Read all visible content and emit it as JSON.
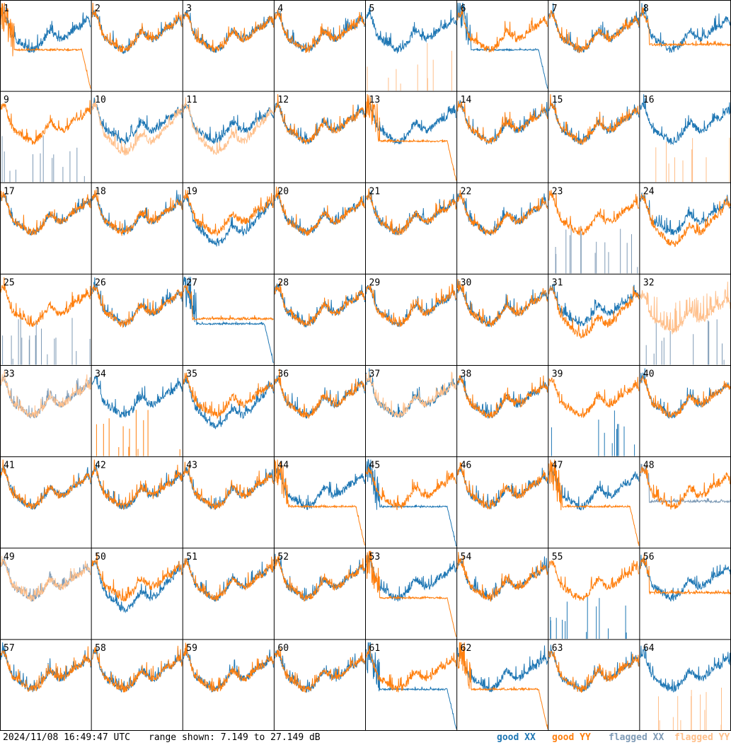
{
  "footer": {
    "timestamp": "2024/11/08 16:49:47 UTC",
    "range_text": "range shown: 7.149 to 27.149 dB",
    "legend": {
      "good_xx_label": "good XX",
      "good_yy_label": "good YY",
      "flagged_xx_label": "flagged XX",
      "flagged_yy_label": "flagged YY"
    }
  },
  "colors": {
    "good_xx": "#1f77b4",
    "good_yy": "#ff7f0e",
    "flagged_xx": "#7f9bb6",
    "flagged_yy": "#ffbf8a",
    "grid": "#000000"
  },
  "chart_data": {
    "type": "line",
    "grid": "8x8 small multiples, antenna spectra",
    "y_range_db": [
      7.149,
      27.149
    ],
    "panels": [
      {
        "id": "1",
        "xx": "good",
        "yy": "good",
        "xx_shape": "normal",
        "yy_shape": "dropout"
      },
      {
        "id": "2",
        "xx": "good",
        "yy": "good",
        "xx_shape": "normal",
        "yy_shape": "normal"
      },
      {
        "id": "3",
        "xx": "good",
        "yy": "good",
        "xx_shape": "normal",
        "yy_shape": "normal"
      },
      {
        "id": "4",
        "xx": "good",
        "yy": "good",
        "xx_shape": "normal",
        "yy_shape": "normal"
      },
      {
        "id": "5",
        "xx": "good",
        "yy": "flagged",
        "xx_shape": "normal",
        "yy_shape": "spikes"
      },
      {
        "id": "6",
        "xx": "good",
        "yy": "good",
        "xx_shape": "dropout",
        "yy_shape": "normal"
      },
      {
        "id": "7",
        "xx": "good",
        "yy": "good",
        "xx_shape": "normal",
        "yy_shape": "normal"
      },
      {
        "id": "8",
        "xx": "good",
        "yy": "good",
        "xx_shape": "normal",
        "yy_shape": "flat"
      },
      {
        "id": "9",
        "xx": "flagged",
        "yy": "good",
        "xx_shape": "spikes",
        "yy_shape": "normal"
      },
      {
        "id": "10",
        "xx": "good",
        "yy": "flagged",
        "xx_shape": "normal",
        "yy_shape": "low"
      },
      {
        "id": "11",
        "xx": "good",
        "yy": "flagged",
        "xx_shape": "normal",
        "yy_shape": "low"
      },
      {
        "id": "12",
        "xx": "good",
        "yy": "good",
        "xx_shape": "normal",
        "yy_shape": "normal"
      },
      {
        "id": "13",
        "xx": "good",
        "yy": "good",
        "xx_shape": "normal",
        "yy_shape": "dropout"
      },
      {
        "id": "14",
        "xx": "good",
        "yy": "good",
        "xx_shape": "normal",
        "yy_shape": "normal"
      },
      {
        "id": "15",
        "xx": "good",
        "yy": "good",
        "xx_shape": "normal",
        "yy_shape": "normal"
      },
      {
        "id": "16",
        "xx": "good",
        "yy": "flagged",
        "xx_shape": "normal",
        "yy_shape": "spikes"
      },
      {
        "id": "17",
        "xx": "good",
        "yy": "good",
        "xx_shape": "normal",
        "yy_shape": "normal"
      },
      {
        "id": "18",
        "xx": "good",
        "yy": "good",
        "xx_shape": "normal",
        "yy_shape": "normal"
      },
      {
        "id": "19",
        "xx": "good",
        "yy": "good",
        "xx_shape": "low",
        "yy_shape": "normal"
      },
      {
        "id": "20",
        "xx": "good",
        "yy": "good",
        "xx_shape": "normal",
        "yy_shape": "normal"
      },
      {
        "id": "21",
        "xx": "good",
        "yy": "good",
        "xx_shape": "normal",
        "yy_shape": "normal"
      },
      {
        "id": "22",
        "xx": "good",
        "yy": "good",
        "xx_shape": "normal",
        "yy_shape": "normal"
      },
      {
        "id": "23",
        "xx": "flagged",
        "yy": "good",
        "xx_shape": "spikes",
        "yy_shape": "normal"
      },
      {
        "id": "24",
        "xx": "good",
        "yy": "good",
        "xx_shape": "normal",
        "yy_shape": "low"
      },
      {
        "id": "25",
        "xx": "flagged",
        "yy": "good",
        "xx_shape": "spikes",
        "yy_shape": "normal"
      },
      {
        "id": "26",
        "xx": "good",
        "yy": "good",
        "xx_shape": "normal",
        "yy_shape": "normal"
      },
      {
        "id": "27",
        "xx": "good",
        "yy": "good",
        "xx_shape": "dropout",
        "yy_shape": "flat"
      },
      {
        "id": "28",
        "xx": "good",
        "yy": "good",
        "xx_shape": "normal",
        "yy_shape": "normal"
      },
      {
        "id": "29",
        "xx": "good",
        "yy": "good",
        "xx_shape": "normal",
        "yy_shape": "normal"
      },
      {
        "id": "30",
        "xx": "good",
        "yy": "good",
        "xx_shape": "normal",
        "yy_shape": "normal"
      },
      {
        "id": "31",
        "xx": "good",
        "yy": "good",
        "xx_shape": "normal",
        "yy_shape": "low"
      },
      {
        "id": "32",
        "xx": "flagged",
        "yy": "flagged",
        "xx_shape": "spikes",
        "yy_shape": "noisy"
      },
      {
        "id": "33",
        "xx": "flagged",
        "yy": "flagged",
        "xx_shape": "normal",
        "yy_shape": "normal"
      },
      {
        "id": "34",
        "xx": "good",
        "yy": "good",
        "xx_shape": "normal",
        "yy_shape": "spikes"
      },
      {
        "id": "35",
        "xx": "good",
        "yy": "good",
        "xx_shape": "low",
        "yy_shape": "normal"
      },
      {
        "id": "36",
        "xx": "good",
        "yy": "good",
        "xx_shape": "normal",
        "yy_shape": "normal"
      },
      {
        "id": "37",
        "xx": "good",
        "yy": "flagged",
        "xx_shape": "normal",
        "yy_shape": "normal"
      },
      {
        "id": "38",
        "xx": "good",
        "yy": "good",
        "xx_shape": "normal",
        "yy_shape": "normal"
      },
      {
        "id": "39",
        "xx": "good",
        "yy": "good",
        "xx_shape": "spikes",
        "yy_shape": "normal"
      },
      {
        "id": "40",
        "xx": "good",
        "yy": "good",
        "xx_shape": "normal",
        "yy_shape": "normal"
      },
      {
        "id": "41",
        "xx": "good",
        "yy": "good",
        "xx_shape": "normal",
        "yy_shape": "normal"
      },
      {
        "id": "42",
        "xx": "good",
        "yy": "good",
        "xx_shape": "normal",
        "yy_shape": "normal"
      },
      {
        "id": "43",
        "xx": "good",
        "yy": "good",
        "xx_shape": "normal",
        "yy_shape": "normal"
      },
      {
        "id": "44",
        "xx": "good",
        "yy": "good",
        "xx_shape": "normal",
        "yy_shape": "dropout"
      },
      {
        "id": "45",
        "xx": "good",
        "yy": "good",
        "xx_shape": "dropout",
        "yy_shape": "normal"
      },
      {
        "id": "46",
        "xx": "good",
        "yy": "good",
        "xx_shape": "normal",
        "yy_shape": "normal"
      },
      {
        "id": "47",
        "xx": "good",
        "yy": "good",
        "xx_shape": "normal",
        "yy_shape": "dropout"
      },
      {
        "id": "48",
        "xx": "flagged",
        "yy": "good",
        "xx_shape": "flat",
        "yy_shape": "normal"
      },
      {
        "id": "49",
        "xx": "flagged",
        "yy": "flagged",
        "xx_shape": "normal",
        "yy_shape": "normal"
      },
      {
        "id": "50",
        "xx": "good",
        "yy": "good",
        "xx_shape": "low",
        "yy_shape": "normal"
      },
      {
        "id": "51",
        "xx": "good",
        "yy": "good",
        "xx_shape": "normal",
        "yy_shape": "normal"
      },
      {
        "id": "52",
        "xx": "good",
        "yy": "good",
        "xx_shape": "normal",
        "yy_shape": "normal"
      },
      {
        "id": "53",
        "xx": "good",
        "yy": "good",
        "xx_shape": "normal",
        "yy_shape": "dropout"
      },
      {
        "id": "54",
        "xx": "good",
        "yy": "good",
        "xx_shape": "normal",
        "yy_shape": "normal"
      },
      {
        "id": "55",
        "xx": "good",
        "yy": "good",
        "xx_shape": "spikes",
        "yy_shape": "normal"
      },
      {
        "id": "56",
        "xx": "good",
        "yy": "good",
        "xx_shape": "normal",
        "yy_shape": "flat"
      },
      {
        "id": "57",
        "xx": "good",
        "yy": "good",
        "xx_shape": "normal",
        "yy_shape": "normal"
      },
      {
        "id": "58",
        "xx": "good",
        "yy": "good",
        "xx_shape": "normal",
        "yy_shape": "normal"
      },
      {
        "id": "59",
        "xx": "good",
        "yy": "good",
        "xx_shape": "normal",
        "yy_shape": "normal"
      },
      {
        "id": "60",
        "xx": "good",
        "yy": "good",
        "xx_shape": "normal",
        "yy_shape": "normal"
      },
      {
        "id": "61",
        "xx": "good",
        "yy": "good",
        "xx_shape": "dropout",
        "yy_shape": "normal"
      },
      {
        "id": "62",
        "xx": "good",
        "yy": "good",
        "xx_shape": "normal",
        "yy_shape": "dropout"
      },
      {
        "id": "63",
        "xx": "good",
        "yy": "good",
        "xx_shape": "normal",
        "yy_shape": "normal"
      },
      {
        "id": "64",
        "xx": "good",
        "yy": "flagged",
        "xx_shape": "normal",
        "yy_shape": "spikes"
      }
    ]
  }
}
